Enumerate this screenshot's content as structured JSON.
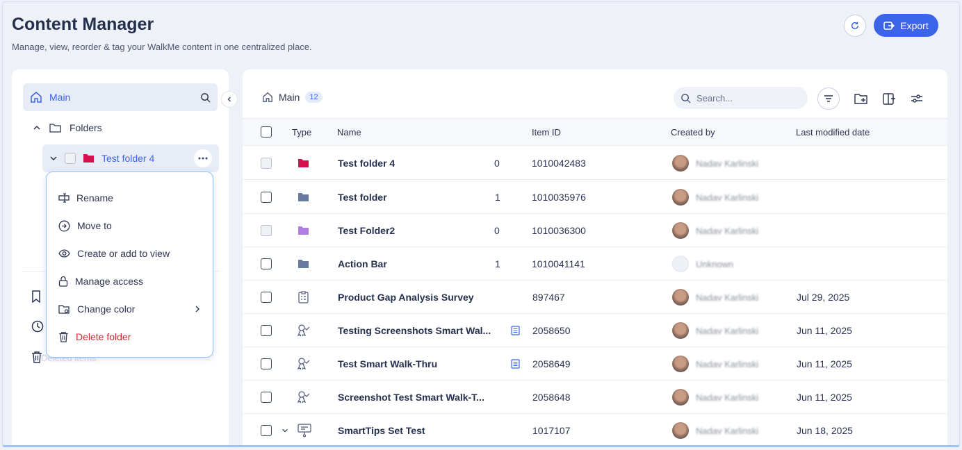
{
  "header": {
    "title": "Content Manager",
    "subtitle": "Manage, view, reorder & tag your WalkMe content in one centralized place.",
    "export_label": "Export"
  },
  "sidebar": {
    "main_label": "Main",
    "folders_label": "Folders",
    "current_folder": "Test folder 4",
    "deleted_label": "Deleted items"
  },
  "context_menu": {
    "items": [
      {
        "label": "Rename",
        "icon": "rename-icon"
      },
      {
        "label": "Move to",
        "icon": "move-icon"
      },
      {
        "label": "Create or add to view",
        "icon": "eye-icon"
      },
      {
        "label": "Manage access",
        "icon": "lock-icon"
      },
      {
        "label": "Change color",
        "icon": "color-folder-icon"
      },
      {
        "label": "Delete folder",
        "icon": "trash-icon"
      }
    ]
  },
  "content": {
    "breadcrumb": "Main",
    "count": "12",
    "search_placeholder": "Search...",
    "columns": {
      "type": "Type",
      "name": "Name",
      "item_id": "Item ID",
      "created_by": "Created by",
      "last_modified": "Last modified date"
    },
    "rows": [
      {
        "type": "folder",
        "name": "Test folder 4",
        "count": "0",
        "id": "1010042483",
        "creator": "Nadav Karlinski",
        "date": ""
      },
      {
        "type": "folder",
        "name": "Test folder",
        "count": "1",
        "id": "1010035976",
        "creator": "Nadav Karlinski",
        "date": ""
      },
      {
        "type": "folder",
        "name": "Test Folder2",
        "count": "0",
        "id": "1010036300",
        "creator": "Nadav Karlinski",
        "date": ""
      },
      {
        "type": "folder",
        "name": "Action Bar",
        "count": "1",
        "id": "1010041141",
        "creator": "Unknown",
        "date": ""
      },
      {
        "type": "survey",
        "name": "Product Gap Analysis Survey",
        "count": "",
        "id": "897467",
        "creator": "Nadav Karlinski",
        "date": "Jul 29, 2025"
      },
      {
        "type": "walkthru",
        "name": "Testing Screenshots Smart Wal...",
        "count": "",
        "id": "2058650",
        "creator": "Nadav Karlinski",
        "date": "Jun 11, 2025"
      },
      {
        "type": "walkthru",
        "name": "Test Smart Walk-Thru",
        "count": "",
        "id": "2058649",
        "creator": "Nadav Karlinski",
        "date": "Jun 11, 2025"
      },
      {
        "type": "walkthru",
        "name": "Screenshot Test Smart Walk-T...",
        "count": "",
        "id": "2058648",
        "creator": "Nadav Karlinski",
        "date": "Jun 11, 2025"
      },
      {
        "type": "smarttips",
        "name": "SmartTips Set Test",
        "count": "",
        "id": "1017107",
        "creator": "Nadav Karlinski",
        "date": "Jun 18, 2025"
      }
    ]
  },
  "colors": {
    "accent": "#3b64e8",
    "folder_pink": "#d4104f",
    "folder_gray": "#687aa0",
    "folder_purple": "#b07ee0",
    "danger": "#c72a2f"
  }
}
